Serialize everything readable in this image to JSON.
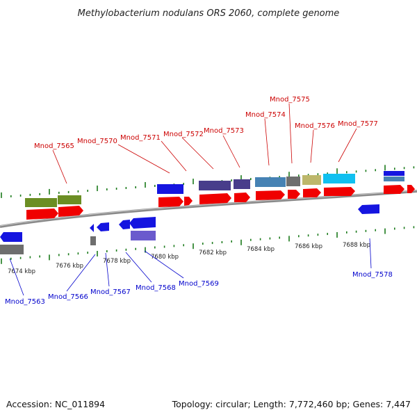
{
  "title": "Methylobacterium nodulans ORS 2060, complete genome",
  "footer": {
    "accession": "Accession: NC_011894",
    "summary": "Topology: circular; Length: 7,772,460 bp; Genes: 7,447"
  },
  "colors": {
    "forward_label": "#cc0000",
    "reverse_label": "#0000cc",
    "tick": "#1a7a1a",
    "backbone": "#808080"
  },
  "tick_labels": [
    "7674 kbp",
    "7676 kbp",
    "7678 kbp",
    "7680 kbp",
    "7682 kbp",
    "7684 kbp",
    "7686 kbp",
    "7688 kbp"
  ],
  "forward_genes": [
    "Mnod_7565",
    "Mnod_7570",
    "Mnod_7571",
    "Mnod_7572",
    "Mnod_7573",
    "Mnod_7574",
    "Mnod_7575",
    "Mnod_7576",
    "Mnod_7577"
  ],
  "reverse_genes": [
    "Mnod_7563",
    "Mnod_7566",
    "Mnod_7567",
    "Mnod_7568",
    "Mnod_7569",
    "Mnod_7578"
  ]
}
